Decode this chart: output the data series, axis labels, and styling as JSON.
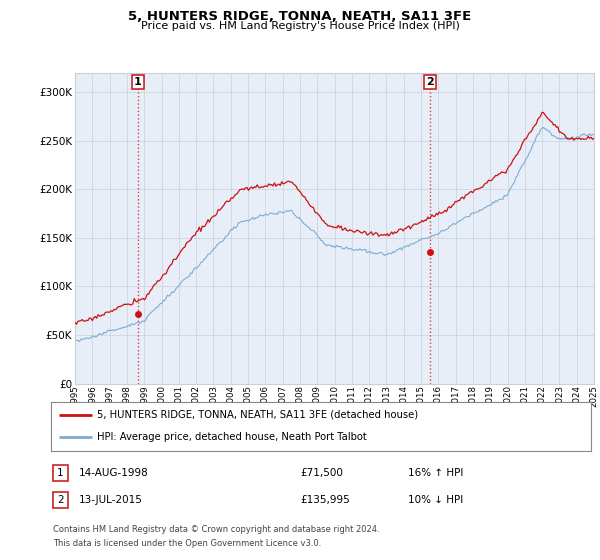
{
  "title": "5, HUNTERS RIDGE, TONNA, NEATH, SA11 3FE",
  "subtitle": "Price paid vs. HM Land Registry's House Price Index (HPI)",
  "ylim": [
    0,
    320000
  ],
  "yticks": [
    0,
    50000,
    100000,
    150000,
    200000,
    250000,
    300000
  ],
  "ytick_labels": [
    "£0",
    "£50K",
    "£100K",
    "£150K",
    "£200K",
    "£250K",
    "£300K"
  ],
  "hpi_color": "#7badd4",
  "price_color": "#cc1111",
  "vline_color": "#cc4444",
  "marker1_year": 1998.62,
  "marker1_value": 71500,
  "marker2_year": 2015.53,
  "marker2_value": 135995,
  "legend_line1": "5, HUNTERS RIDGE, TONNA, NEATH, SA11 3FE (detached house)",
  "legend_line2": "HPI: Average price, detached house, Neath Port Talbot",
  "table_row1": [
    "1",
    "14-AUG-1998",
    "£71,500",
    "16% ↑ HPI"
  ],
  "table_row2": [
    "2",
    "13-JUL-2015",
    "£135,995",
    "10% ↓ HPI"
  ],
  "footnote1": "Contains HM Land Registry data © Crown copyright and database right 2024.",
  "footnote2": "This data is licensed under the Open Government Licence v3.0.",
  "bg_color": "#ffffff",
  "plot_bg_color": "#e8eef8",
  "grid_color": "#c8d0dc"
}
